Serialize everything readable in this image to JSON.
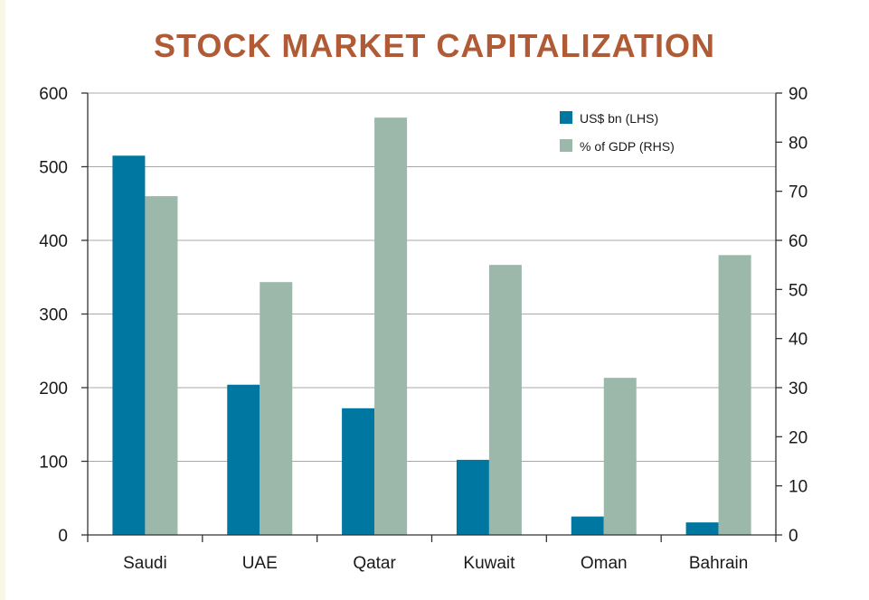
{
  "chart_data": {
    "type": "bar",
    "title": "STOCK MARKET CAPITALIZATION",
    "categories": [
      "Saudi",
      "UAE",
      "Qatar",
      "Kuwait",
      "Oman",
      "Bahrain"
    ],
    "series": [
      {
        "name": "US$ bn (LHS)",
        "axis": "left",
        "color": "#0077a0",
        "values": [
          515,
          204,
          172,
          102,
          25,
          17
        ]
      },
      {
        "name": "% of GDP (RHS)",
        "axis": "right",
        "color": "#9cb8ab",
        "values": [
          69,
          51.5,
          85,
          55,
          32,
          57
        ]
      }
    ],
    "y_left": {
      "min": 0,
      "max": 600,
      "ticks": [
        "0",
        "100",
        "200",
        "300",
        "400",
        "500",
        "600"
      ]
    },
    "y_right": {
      "min": 0,
      "max": 90,
      "ticks": [
        "0",
        "10",
        "20",
        "30",
        "40",
        "50",
        "60",
        "70",
        "80",
        "90"
      ]
    },
    "xlabel": "",
    "ylabel": "",
    "grid": true,
    "legend_position": "top-right"
  }
}
